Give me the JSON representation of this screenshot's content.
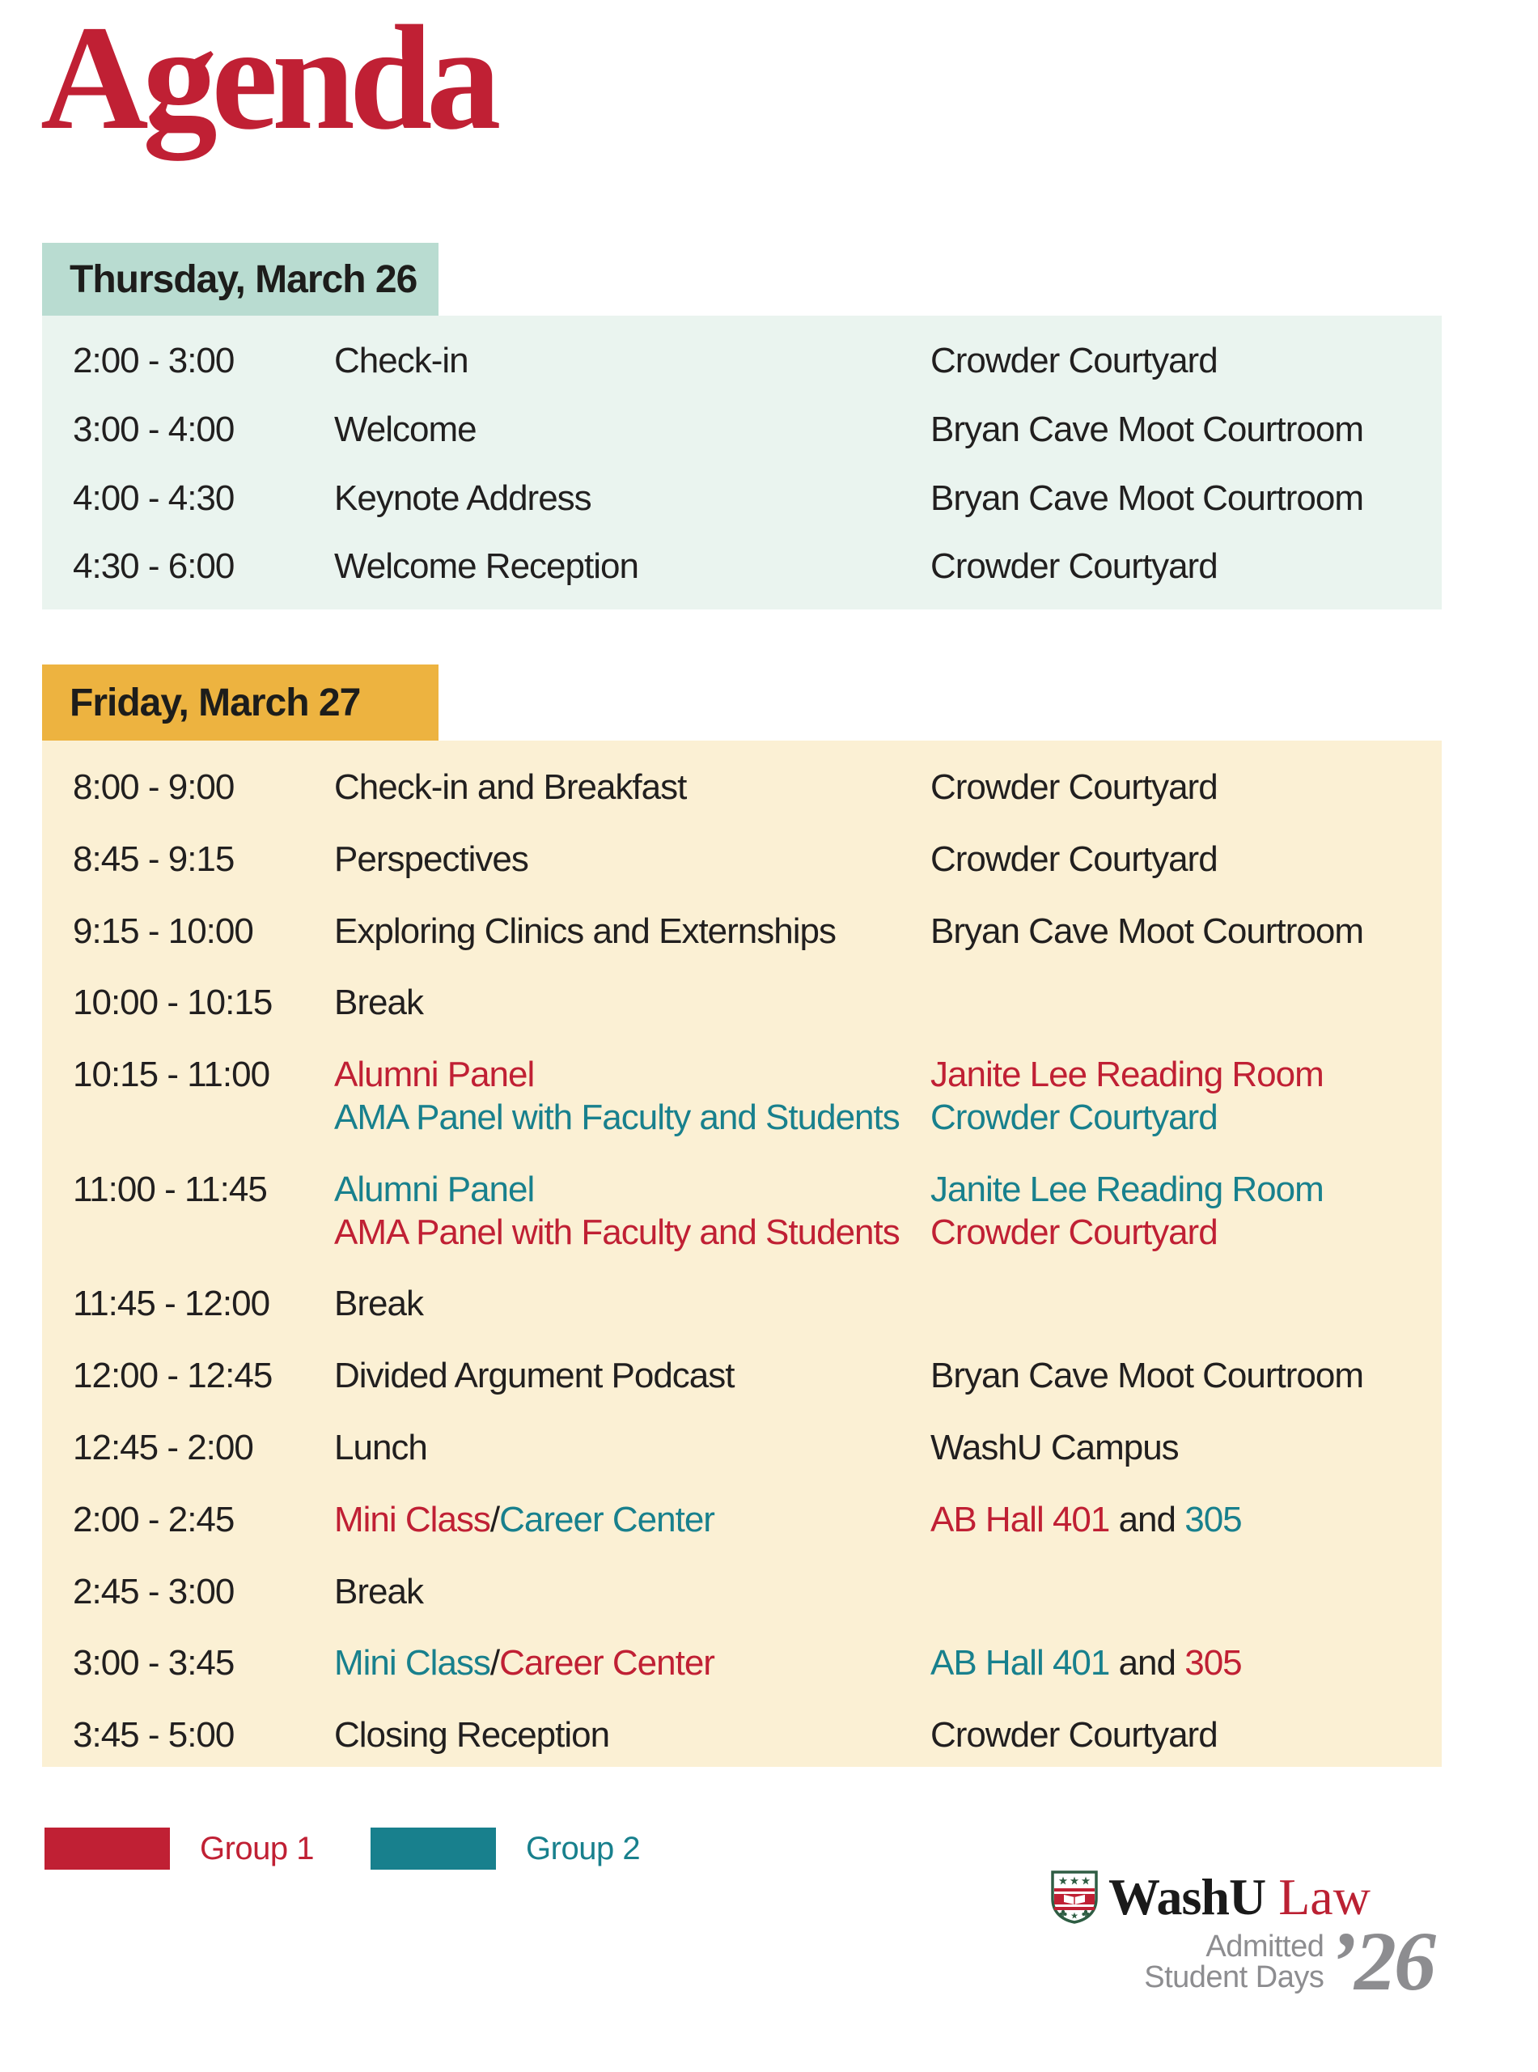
{
  "page_title": "Agenda",
  "colors": {
    "red": "#c02034",
    "teal": "#18808d",
    "mint_header": "#b9dcd1",
    "mint_bg": "#eaf4ef",
    "gold_header": "#edb340",
    "cream_bg": "#fbf0d4",
    "text": "#211f1f",
    "gray": "#8d8d90",
    "shield_green": "#2e5d43"
  },
  "days": [
    {
      "label": "Thursday, March 26",
      "theme": "thu",
      "rows": [
        {
          "time": "2:00 - 3:00",
          "event": [
            [
              {
                "t": "Check-in",
                "c": "default"
              }
            ]
          ],
          "location": [
            [
              {
                "t": "Crowder Courtyard",
                "c": "default"
              }
            ]
          ]
        },
        {
          "time": "3:00 - 4:00",
          "event": [
            [
              {
                "t": "Welcome",
                "c": "default"
              }
            ]
          ],
          "location": [
            [
              {
                "t": "Bryan Cave Moot Courtroom",
                "c": "default"
              }
            ]
          ]
        },
        {
          "time": "4:00 - 4:30",
          "event": [
            [
              {
                "t": "Keynote Address",
                "c": "default"
              }
            ]
          ],
          "location": [
            [
              {
                "t": "Bryan Cave Moot Courtroom",
                "c": "default"
              }
            ]
          ]
        },
        {
          "time": "4:30 - 6:00",
          "event": [
            [
              {
                "t": "Welcome Reception",
                "c": "default"
              }
            ]
          ],
          "location": [
            [
              {
                "t": "Crowder Courtyard",
                "c": "default"
              }
            ]
          ]
        }
      ]
    },
    {
      "label": "Friday, March 27",
      "theme": "fri",
      "rows": [
        {
          "time": "8:00 - 9:00",
          "event": [
            [
              {
                "t": "Check-in and Breakfast",
                "c": "default"
              }
            ]
          ],
          "location": [
            [
              {
                "t": "Crowder Courtyard",
                "c": "default"
              }
            ]
          ]
        },
        {
          "time": "8:45 - 9:15",
          "event": [
            [
              {
                "t": "Perspectives",
                "c": "default"
              }
            ]
          ],
          "location": [
            [
              {
                "t": "Crowder Courtyard",
                "c": "default"
              }
            ]
          ]
        },
        {
          "time": "9:15 - 10:00",
          "event": [
            [
              {
                "t": "Exploring Clinics and Externships",
                "c": "default"
              }
            ]
          ],
          "location": [
            [
              {
                "t": "Bryan Cave Moot Courtroom",
                "c": "default"
              }
            ]
          ]
        },
        {
          "time": "10:00 - 10:15",
          "event": [
            [
              {
                "t": "Break",
                "c": "default"
              }
            ]
          ],
          "location": [
            []
          ]
        },
        {
          "time": "10:15 - 11:00",
          "event": [
            [
              {
                "t": "Alumni Panel",
                "c": "red"
              }
            ],
            [
              {
                "t": "AMA Panel with Faculty and Students",
                "c": "teal"
              }
            ]
          ],
          "location": [
            [
              {
                "t": "Janite Lee Reading Room",
                "c": "red"
              }
            ],
            [
              {
                "t": "Crowder Courtyard",
                "c": "teal"
              }
            ]
          ]
        },
        {
          "time": "11:00 - 11:45",
          "event": [
            [
              {
                "t": "Alumni Panel",
                "c": "teal"
              }
            ],
            [
              {
                "t": "AMA Panel with Faculty and Students",
                "c": "red"
              }
            ]
          ],
          "location": [
            [
              {
                "t": "Janite Lee Reading Room",
                "c": "teal"
              }
            ],
            [
              {
                "t": "Crowder Courtyard",
                "c": "red"
              }
            ]
          ]
        },
        {
          "time": "11:45 - 12:00",
          "event": [
            [
              {
                "t": "Break",
                "c": "default"
              }
            ]
          ],
          "location": [
            []
          ]
        },
        {
          "time": "12:00 - 12:45",
          "event": [
            [
              {
                "t": "Divided Argument Podcast",
                "c": "default"
              }
            ]
          ],
          "location": [
            [
              {
                "t": "Bryan Cave Moot Courtroom",
                "c": "default"
              }
            ]
          ]
        },
        {
          "time": "12:45 - 2:00",
          "event": [
            [
              {
                "t": "Lunch",
                "c": "default"
              }
            ]
          ],
          "location": [
            [
              {
                "t": "WashU Campus",
                "c": "default"
              }
            ]
          ]
        },
        {
          "time": "2:00 - 2:45",
          "event": [
            [
              {
                "t": "Mini Class",
                "c": "red"
              },
              {
                "t": "/",
                "c": "default"
              },
              {
                "t": "Career Center",
                "c": "teal"
              }
            ]
          ],
          "location": [
            [
              {
                "t": "AB Hall 401",
                "c": "red"
              },
              {
                "t": " and ",
                "c": "default"
              },
              {
                "t": "305",
                "c": "teal"
              }
            ]
          ]
        },
        {
          "time": "2:45 - 3:00",
          "event": [
            [
              {
                "t": "Break",
                "c": "default"
              }
            ]
          ],
          "location": [
            []
          ]
        },
        {
          "time": "3:00 - 3:45",
          "event": [
            [
              {
                "t": "Mini Class",
                "c": "teal"
              },
              {
                "t": "/",
                "c": "default"
              },
              {
                "t": "Career Center",
                "c": "red"
              }
            ]
          ],
          "location": [
            [
              {
                "t": "AB Hall 401",
                "c": "teal"
              },
              {
                "t": " and ",
                "c": "default"
              },
              {
                "t": "305",
                "c": "red"
              }
            ]
          ]
        },
        {
          "time": "3:45 - 5:00",
          "event": [
            [
              {
                "t": "Closing Reception",
                "c": "default"
              }
            ]
          ],
          "location": [
            [
              {
                "t": "Crowder Courtyard",
                "c": "default"
              }
            ]
          ]
        }
      ]
    }
  ],
  "legend": {
    "items": [
      {
        "label": "Group 1",
        "color": "red"
      },
      {
        "label": "Group 2",
        "color": "teal"
      }
    ]
  },
  "logo": {
    "brand": "WashU",
    "unit": "Law",
    "line1": "Admitted",
    "line2": "Student Days",
    "year": "’26"
  }
}
